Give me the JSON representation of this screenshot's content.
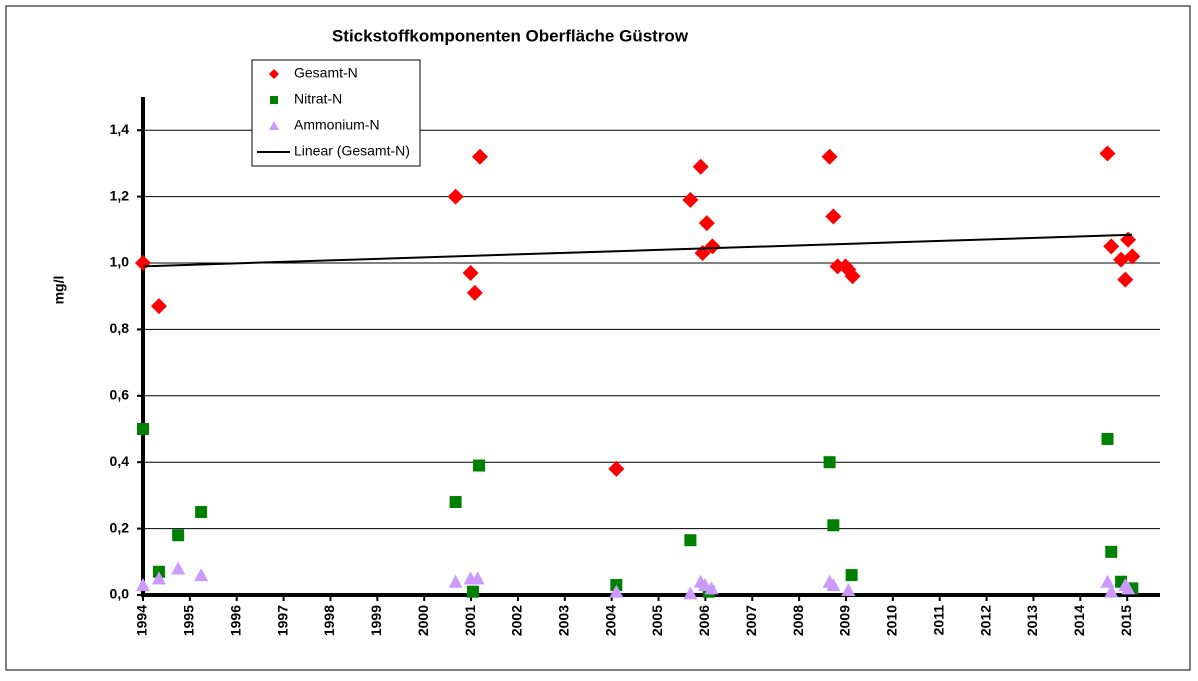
{
  "chart_data": {
    "type": "scatter",
    "title": "Stickstoffkomponenten Oberfläche  Güstrow",
    "ylabel": "mg/l",
    "xlim": [
      1994,
      2015.7
    ],
    "xticks": [
      1994,
      1995,
      1996,
      1997,
      1998,
      1999,
      2000,
      2001,
      2002,
      2003,
      2004,
      2005,
      2006,
      2007,
      2008,
      2009,
      2010,
      2011,
      2012,
      2013,
      2014,
      2015
    ],
    "ylim": [
      0,
      1.5
    ],
    "yticks": [
      {
        "value": 0,
        "label": "0,0"
      },
      {
        "value": 0.2,
        "label": "0,2"
      },
      {
        "value": 0.4,
        "label": "0,4"
      },
      {
        "value": 0.6,
        "label": "0,6"
      },
      {
        "value": 0.8,
        "label": "0,8"
      },
      {
        "value": 1.0,
        "label": "1,0"
      },
      {
        "value": 1.2,
        "label": "1,2"
      },
      {
        "value": 1.4,
        "label": "1,4"
      }
    ],
    "grid": true,
    "series": [
      {
        "name": "Gesamt-N",
        "color": "#ff0000",
        "marker": "diamond",
        "x": [
          1994.0,
          1994.34,
          2000.67,
          2000.99,
          2001.08,
          2001.19,
          2004.1,
          2005.68,
          2005.9,
          2005.94,
          2006.03,
          2006.15,
          2008.65,
          2008.73,
          2008.82,
          2008.99,
          2009.05,
          2009.14,
          2014.58,
          2014.66,
          2014.87,
          2014.96,
          2015.02,
          2015.11
        ],
        "values": [
          1.0,
          0.87,
          1.2,
          0.97,
          0.91,
          1.32,
          0.38,
          1.19,
          1.29,
          1.03,
          1.12,
          1.05,
          1.32,
          1.14,
          0.99,
          0.99,
          0.98,
          0.96,
          1.33,
          1.05,
          1.01,
          0.95,
          1.07,
          1.02
        ]
      },
      {
        "name": "Nitrat-N",
        "color": "#008000",
        "marker": "square",
        "x": [
          1994.0,
          1994.34,
          1994.75,
          1995.24,
          2000.67,
          2001.04,
          2001.17,
          2004.1,
          2005.68,
          2006.07,
          2008.65,
          2008.73,
          2009.12,
          2014.58,
          2014.66,
          2014.87,
          2015.11
        ],
        "values": [
          0.5,
          0.07,
          0.18,
          0.25,
          0.28,
          0.01,
          0.39,
          0.03,
          0.165,
          0.01,
          0.4,
          0.21,
          0.06,
          0.47,
          0.13,
          0.04,
          0.02
        ]
      },
      {
        "name": "Ammonium-N",
        "color": "#cc99ff",
        "marker": "triangle",
        "x": [
          1994.0,
          1994.34,
          1994.75,
          1995.24,
          2000.67,
          2000.99,
          2001.14,
          2004.1,
          2005.68,
          2005.9,
          2005.99,
          2006.13,
          2008.65,
          2008.73,
          2009.05,
          2014.58,
          2014.66,
          2014.96,
          2015.02
        ],
        "values": [
          0.03,
          0.05,
          0.08,
          0.06,
          0.04,
          0.05,
          0.05,
          0.01,
          0.005,
          0.04,
          0.03,
          0.02,
          0.04,
          0.03,
          0.015,
          0.04,
          0.01,
          0.03,
          0.02
        ]
      },
      {
        "name": "Linear (Gesamt-N)",
        "color": "#000000",
        "marker": "line",
        "x": [
          1994.0,
          2015.1
        ],
        "values": [
          0.99,
          1.085
        ]
      }
    ],
    "legend": "top-left"
  }
}
